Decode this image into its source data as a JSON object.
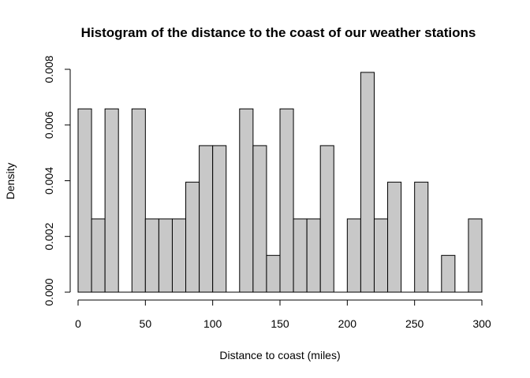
{
  "chart_data": {
    "type": "bar",
    "title": "Histogram of the distance to the coast of our weather stations",
    "xlabel": "Distance to coast (miles)",
    "ylabel": "Density",
    "bin_width": 10,
    "bins": [
      {
        "start": 0,
        "end": 10,
        "density": 0.00658
      },
      {
        "start": 10,
        "end": 20,
        "density": 0.00263
      },
      {
        "start": 20,
        "end": 30,
        "density": 0.00658
      },
      {
        "start": 30,
        "end": 40,
        "density": 0.0
      },
      {
        "start": 40,
        "end": 50,
        "density": 0.00658
      },
      {
        "start": 50,
        "end": 60,
        "density": 0.00263
      },
      {
        "start": 60,
        "end": 70,
        "density": 0.00263
      },
      {
        "start": 70,
        "end": 80,
        "density": 0.00263
      },
      {
        "start": 80,
        "end": 90,
        "density": 0.00395
      },
      {
        "start": 90,
        "end": 100,
        "density": 0.00526
      },
      {
        "start": 100,
        "end": 110,
        "density": 0.00526
      },
      {
        "start": 110,
        "end": 120,
        "density": 0.0
      },
      {
        "start": 120,
        "end": 130,
        "density": 0.00658
      },
      {
        "start": 130,
        "end": 140,
        "density": 0.00526
      },
      {
        "start": 140,
        "end": 150,
        "density": 0.00132
      },
      {
        "start": 150,
        "end": 160,
        "density": 0.00658
      },
      {
        "start": 160,
        "end": 170,
        "density": 0.00263
      },
      {
        "start": 170,
        "end": 180,
        "density": 0.00263
      },
      {
        "start": 180,
        "end": 190,
        "density": 0.00526
      },
      {
        "start": 190,
        "end": 200,
        "density": 0.0
      },
      {
        "start": 200,
        "end": 210,
        "density": 0.00263
      },
      {
        "start": 210,
        "end": 220,
        "density": 0.00789
      },
      {
        "start": 220,
        "end": 230,
        "density": 0.00263
      },
      {
        "start": 230,
        "end": 240,
        "density": 0.00395
      },
      {
        "start": 240,
        "end": 250,
        "density": 0.0
      },
      {
        "start": 250,
        "end": 260,
        "density": 0.00395
      },
      {
        "start": 260,
        "end": 270,
        "density": 0.0
      },
      {
        "start": 270,
        "end": 280,
        "density": 0.00132
      },
      {
        "start": 280,
        "end": 290,
        "density": 0.0
      },
      {
        "start": 290,
        "end": 300,
        "density": 0.00263
      }
    ],
    "xlim": [
      0,
      300
    ],
    "ylim": [
      0,
      0.008
    ],
    "x_ticks": [
      0,
      50,
      100,
      150,
      200,
      250,
      300
    ],
    "x_tick_labels": [
      "0",
      "50",
      "100",
      "150",
      "200",
      "250",
      "300"
    ],
    "y_ticks": [
      0,
      0.002,
      0.004,
      0.006,
      0.008
    ],
    "y_tick_labels": [
      "0.000",
      "0.002",
      "0.004",
      "0.006",
      "0.008"
    ],
    "grid": false,
    "legend": "none",
    "bar_fill_color": "#c8c8c8",
    "bar_edge_color": "#000000"
  }
}
